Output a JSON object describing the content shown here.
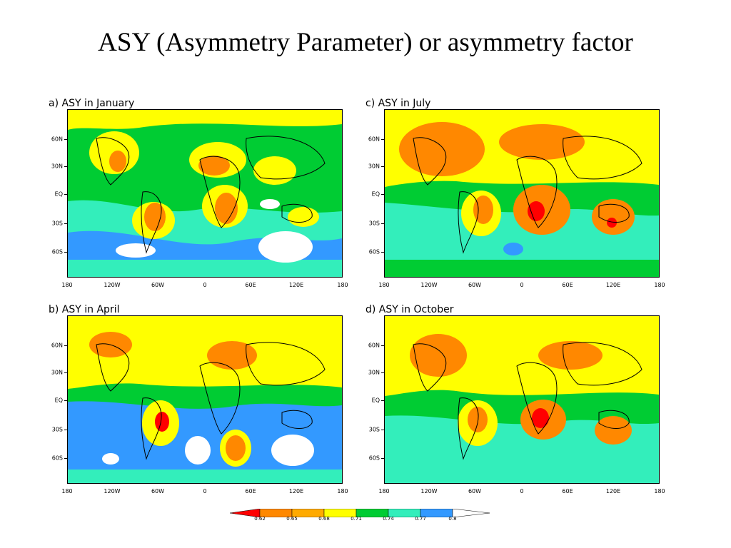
{
  "slide": {
    "title": "ASY (Asymmetry Parameter) or asymmetry factor"
  },
  "palette": {
    "band_red": "#ff0000",
    "band_orange": "#ff8800",
    "band_yellow": "#ffff00",
    "band_green": "#00cc33",
    "band_cyan": "#33eebb",
    "band_blue": "#3399ff",
    "band_white": "#ffffff"
  },
  "axes": {
    "lat_labels": [
      "60N",
      "30N",
      "EQ",
      "30S",
      "60S"
    ],
    "lon_labels": [
      "180",
      "120W",
      "60W",
      "0",
      "60E",
      "120E",
      "180"
    ]
  },
  "panels": [
    {
      "id": "a",
      "title": "a) ASY in January"
    },
    {
      "id": "c",
      "title": "c) ASY in July"
    },
    {
      "id": "b",
      "title": "b) ASY in April"
    },
    {
      "id": "d",
      "title": "d) ASY in October"
    }
  ],
  "colorbar": {
    "labels": [
      "0.62",
      "0.65",
      "0.68",
      "0.71",
      "0.74",
      "0.77",
      "0.8"
    ]
  }
}
